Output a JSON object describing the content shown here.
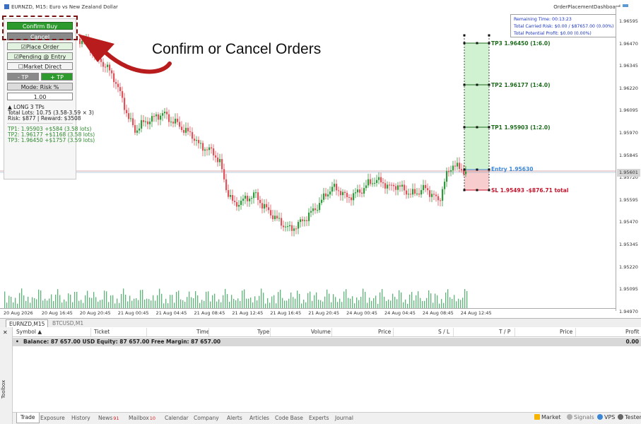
{
  "chart": {
    "symbol_title": "EURNZD, M15:  Euro vs New Zealand Dollar",
    "dashboard_title": "OrderPlacementDashboard",
    "price_ticks": [
      "1.96595",
      "1.96470",
      "1.96345",
      "1.96220",
      "1.96095",
      "1.95970",
      "1.95845",
      "1.95720",
      "1.95595",
      "1.95470",
      "1.95345",
      "1.95220",
      "1.95095",
      "1.94970",
      "1.94845"
    ],
    "current_price": "1.95601",
    "time_ticks": [
      "20 Aug 2026",
      "20 Aug 16:45",
      "20 Aug 20:45",
      "21 Aug 00:45",
      "21 Aug 04:45",
      "21 Aug 08:45",
      "21 Aug 12:45",
      "21 Aug 16:45",
      "21 Aug 20:45",
      "24 Aug 00:45",
      "24 Aug 04:45",
      "24 Aug 08:45",
      "24 Aug 12:45"
    ],
    "colors": {
      "bull": "#2e9a39",
      "bear": "#e0525a",
      "tp_zone": "#c8f0c8",
      "sl_zone": "#f7c8c8",
      "entry": "#3a86d6",
      "sl_text": "#c4122a",
      "tp_text": "#1e6b1e"
    },
    "levels": {
      "tp3": "TP3 1.96450 (1:6.0)",
      "tp2": "TP2 1.96177 (1:4.0)",
      "tp1": "TP1 1.95903 (1:2.0)",
      "entry": "Entry 1.95630",
      "sl": "SL 1.95493  -$876.71 total"
    }
  },
  "info_box": {
    "remaining_time": "Remaining Time: 00:13:23",
    "carried_risk": "Total Carried Risk: $0.00 / $87657.00 (0.00%)",
    "potential_profit": "Total Potential Profit: $0.00 (0.00%)"
  },
  "panel": {
    "confirm_buy": "Confirm Buy",
    "cancel": "Cancel",
    "place_order": "Place Order",
    "pending_entry": "Pending @ Entry",
    "market_direct": "Market Direct",
    "minus_tp": "- TP",
    "plus_tp": "+ TP",
    "mode": "Mode: Risk %",
    "risk_value": "1.00",
    "summary_line1": "▲ LONG  3 TPs",
    "summary_line2": "Total Lots: 10.75 (3.58-3.59 × 3)",
    "summary_line3": "Risk: $877 | Reward: $3508",
    "tp1_line": "TP1: 1.95903  +$584 (3.58 lots)",
    "tp2_line": "TP2: 1.96177  +$1168 (3.58 lots)",
    "tp3_line": "TP3: 1.96450  +$1757 (3.59 lots)"
  },
  "annotation": {
    "text": "Confirm or Cancel Orders"
  },
  "chart_tabs": [
    "EURNZD,M15",
    "BTCUSD,M1"
  ],
  "table": {
    "headers": [
      "Symbol",
      "Ticket",
      "Time",
      "Type",
      "Volume",
      "Price",
      "S / L",
      "T / P",
      "Price",
      "Profit"
    ],
    "balance_text": "Balance: 87 657.00 USD  Equity: 87 657.00  Free Margin: 87 657.00",
    "balance_profit": "0.00"
  },
  "toolbox_label": "Toolbox",
  "bottom_tabs": [
    {
      "label": "Trade",
      "badge": ""
    },
    {
      "label": "Exposure",
      "badge": ""
    },
    {
      "label": "History",
      "badge": ""
    },
    {
      "label": "News",
      "badge": "91"
    },
    {
      "label": "Mailbox",
      "badge": "10"
    },
    {
      "label": "Calendar",
      "badge": ""
    },
    {
      "label": "Company",
      "badge": ""
    },
    {
      "label": "Alerts",
      "badge": ""
    },
    {
      "label": "Articles",
      "badge": ""
    },
    {
      "label": "Code Base",
      "badge": ""
    },
    {
      "label": "Experts",
      "badge": ""
    },
    {
      "label": "Journal",
      "badge": ""
    }
  ],
  "right_buttons": {
    "market": "Market",
    "signals": "Signals",
    "vps": "VPS",
    "tester": "Tester"
  }
}
